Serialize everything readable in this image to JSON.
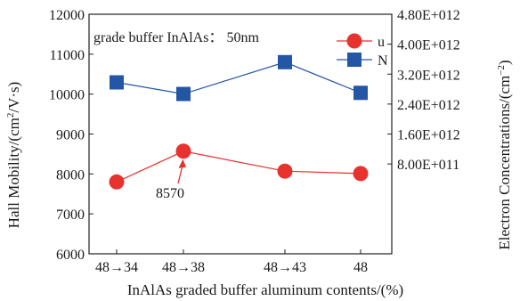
{
  "chart_data": {
    "type": "line",
    "annotation_text": "grade buffer InAlAs： 50nm",
    "x_label": "InAlAs graded buffer aluminum contents/(%)",
    "y_label_left_parts": [
      "Hall Mobility/(cm",
      "2",
      "/V·s)"
    ],
    "y_label_right_parts": [
      "Electron Concentrations/(cm",
      "−2",
      ")"
    ],
    "categories": [
      "48→34",
      "48→38",
      "48→43",
      "48"
    ],
    "left_axis": {
      "min": 6000,
      "max": 12000,
      "ticks": [
        6000,
        7000,
        8000,
        9000,
        10000,
        11000,
        12000
      ],
      "tick_labels": [
        "6000",
        "7000",
        "8000",
        "9000",
        "10000",
        "11000",
        "12000"
      ]
    },
    "right_axis": {
      "min": -1600000000000,
      "max": 4800000000000,
      "ticks": [
        800000000000,
        1600000000000,
        2400000000000,
        3200000000000,
        4000000000000,
        4800000000000
      ],
      "tick_labels": [
        "8.00E+011",
        "1.60E+012",
        "2.40E+012",
        "3.20E+012",
        "4.00E+012",
        "4.80E+012"
      ]
    },
    "series": [
      {
        "name": "u",
        "axis": "left",
        "marker": "circle",
        "color": "#e8322e",
        "values": [
          7800,
          8570,
          8070,
          8010
        ]
      },
      {
        "name": "N",
        "axis": "right",
        "marker": "square",
        "color": "#2456a6",
        "values": [
          2980000000000,
          2670000000000,
          3520000000000,
          2700000000000
        ]
      }
    ],
    "point_label": {
      "text": "8570",
      "series_index": 0,
      "point_index": 1
    }
  }
}
